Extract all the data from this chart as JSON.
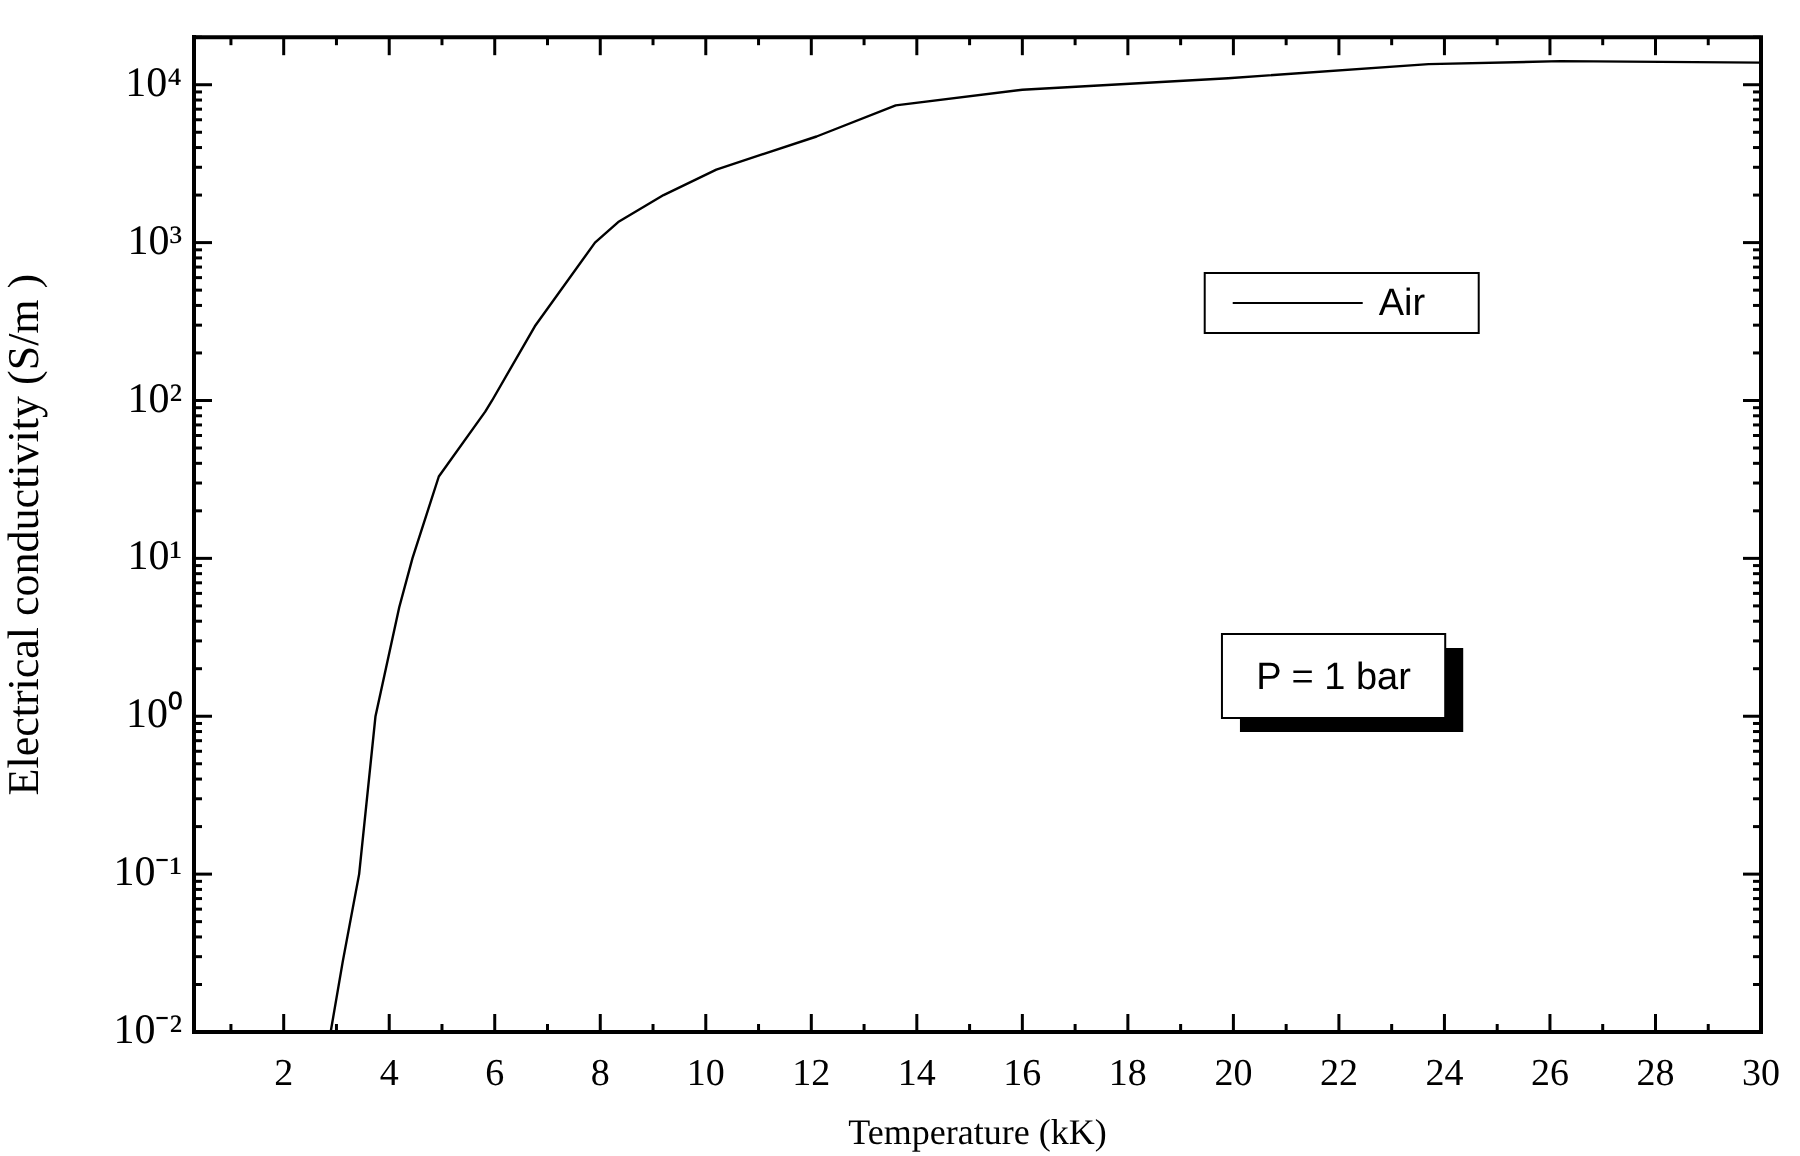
{
  "chart_data": {
    "type": "line",
    "xlabel": "Temperature (kK)",
    "ylabel": "Electrical conductivity (S/m )",
    "log": "y",
    "grid": false,
    "legend": "top right",
    "marker": "none",
    "line_style": "solid",
    "xlim": [
      0.3,
      30
    ],
    "xticks": [
      2,
      4,
      6,
      8,
      10,
      12,
      14,
      16,
      18,
      20,
      22,
      24,
      26,
      28,
      30
    ],
    "ylim": [
      0.01,
      20000
    ],
    "yticks": [
      {
        "value": 0.01,
        "label": "10⁻²"
      },
      {
        "value": 0.1,
        "label": "10⁻¹"
      },
      {
        "value": 1,
        "label": "10⁰"
      },
      {
        "value": 10,
        "label": "10¹"
      },
      {
        "value": 100,
        "label": "10²"
      },
      {
        "value": 1000,
        "label": "10³"
      },
      {
        "value": 10000,
        "label": "10⁴"
      }
    ],
    "x": [
      2.89,
      3.12,
      3.43,
      3.74,
      4.19,
      4.44,
      4.94,
      5.82,
      5.95,
      6.76,
      7.9,
      8.34,
      9.2,
      10.2,
      12.1,
      13.6,
      16,
      19.9,
      23.7,
      26.2,
      30
    ],
    "series": [
      {
        "name": "Air",
        "color": "#000000",
        "values": [
          0.01,
          0.028,
          0.1,
          1,
          4.9,
          10,
          33,
          85,
          100,
          295,
          1000,
          1350,
          2000,
          2900,
          4700,
          7400,
          9300,
          11000,
          13500,
          14100,
          13800
        ]
      }
    ],
    "annotations": [
      "P = 1 bar"
    ]
  }
}
